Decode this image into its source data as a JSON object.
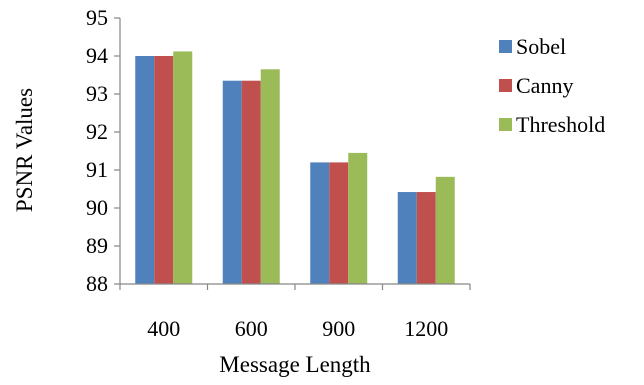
{
  "chart_data": {
    "type": "bar",
    "title": "",
    "xlabel": "Message Length",
    "ylabel": "PSNR Values",
    "categories": [
      "400",
      "600",
      "900",
      "1200"
    ],
    "series": [
      {
        "name": "Sobel",
        "values": [
          94.0,
          93.35,
          91.2,
          90.42
        ]
      },
      {
        "name": "Canny",
        "values": [
          94.0,
          93.35,
          91.2,
          90.42
        ]
      },
      {
        "name": "Threshold",
        "values": [
          94.12,
          93.65,
          91.45,
          90.82
        ]
      }
    ],
    "ylim": [
      88,
      95
    ],
    "yticks": [
      "88",
      "89",
      "90",
      "91",
      "92",
      "93",
      "94",
      "95"
    ],
    "grid": false,
    "legend": "right"
  },
  "colors": {
    "Sobel": "#4f81bd",
    "Canny": "#c0504d",
    "Threshold": "#9bbb59",
    "axis": "#868686"
  }
}
